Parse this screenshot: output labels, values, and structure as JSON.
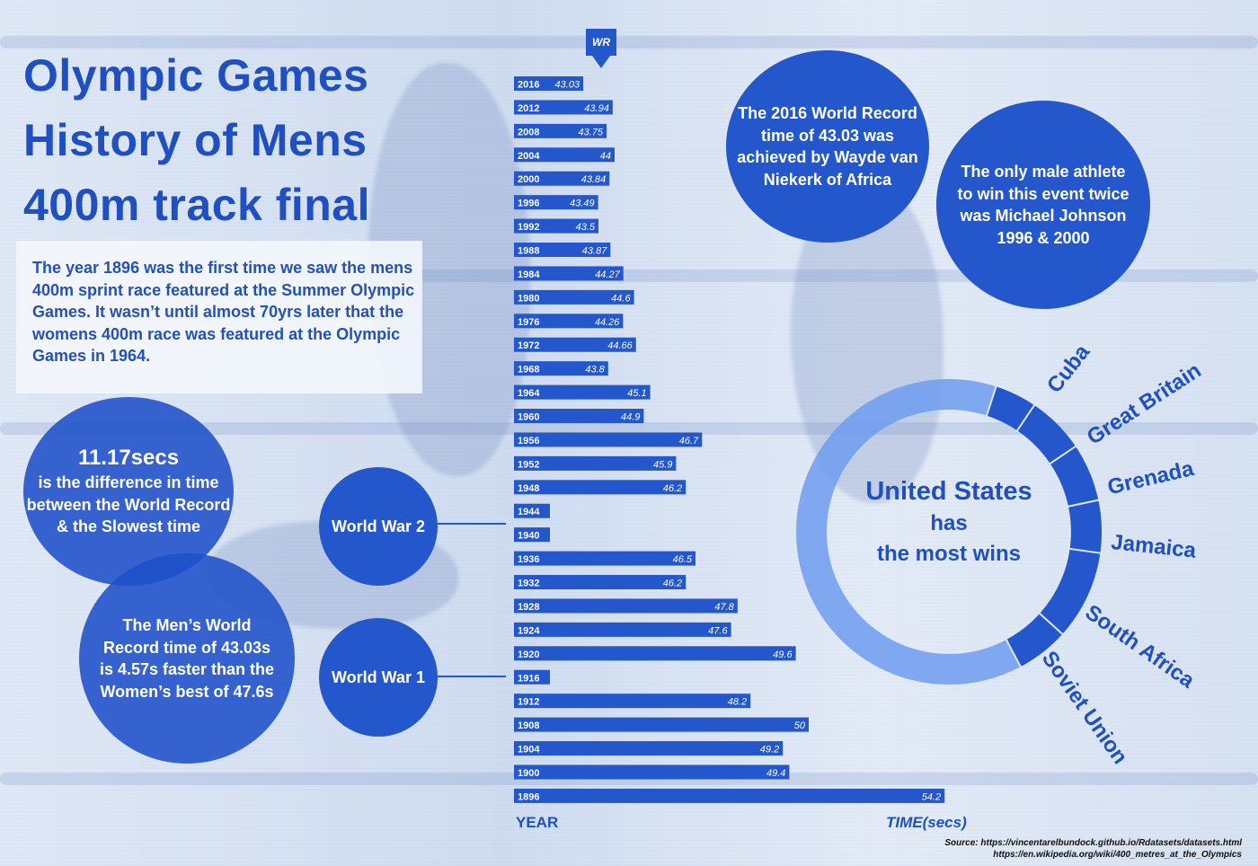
{
  "title_lines": [
    "Olympic Games",
    "History of Mens",
    "400m track final"
  ],
  "intro": "The year 1896 was the first time we saw the mens 400m sprint race featured at the Summer Olympic Games. It wasn’t until almost 70yrs later that the womens 400m race was featured at the Olympic Games in 1964.",
  "facts": {
    "difference_big": "11.17secs",
    "difference_text": "is the difference in time between the World Record & the Slowest time",
    "women": "The Men’s World Record time of 43.03s is 4.57s faster than the Women’s best of 47.6s",
    "wr2016": "The 2016 World Record time of 43.03 was achieved by Wayde van Niekerk of Africa",
    "johnson": "The only male athlete to win this event twice was Michael Johnson 1996 & 2000",
    "ww2": "World War 2",
    "ww1": "World War 1"
  },
  "wr_marker": "WR",
  "axis": {
    "year": "YEAR",
    "time": "TIME(secs)"
  },
  "donut": {
    "center_country": "United States",
    "center_line2": "has",
    "center_line3": "the most wins",
    "countries": [
      "Cuba",
      "Great Britain",
      "Grenada",
      "Jamaica",
      "South Africa",
      "Soviet Union"
    ]
  },
  "source_lines": [
    "Source: https://vincentarelbundock.github.io/Rdatasets/datasets.html",
    "https://en.wikipedia.org/wiki/400_metres_at_the_Olympics"
  ],
  "colors": {
    "bar": "#2457cb",
    "accent": "#1f4fc0",
    "donut_light": "#6f9cf0"
  },
  "chart_data": {
    "type": "bar",
    "orientation": "horizontal",
    "xlabel": "TIME(secs)",
    "ylabel": "YEAR",
    "categories": [
      "2016",
      "2012",
      "2008",
      "2004",
      "2000",
      "1996",
      "1992",
      "1988",
      "1984",
      "1980",
      "1976",
      "1972",
      "1968",
      "1964",
      "1960",
      "1956",
      "1952",
      "1948",
      "1944",
      "1940",
      "1936",
      "1932",
      "1928",
      "1924",
      "1920",
      "1916",
      "1912",
      "1908",
      "1904",
      "1900",
      "1896"
    ],
    "values": [
      43.03,
      43.94,
      43.75,
      44,
      43.84,
      43.49,
      43.5,
      43.87,
      44.27,
      44.6,
      44.26,
      44.66,
      43.8,
      45.1,
      44.9,
      46.7,
      45.9,
      46.2,
      null,
      null,
      46.5,
      46.2,
      47.8,
      47.6,
      49.6,
      null,
      48.2,
      50,
      49.2,
      49.4,
      54.2
    ],
    "value_labels": [
      "43.03",
      "43.94",
      "43.75",
      "44",
      "43.84",
      "43.49",
      "43.5",
      "43.87",
      "44.27",
      "44.6",
      "44.26",
      "44.66",
      "43.8",
      "45.1",
      "44.9",
      "46.7",
      "45.9",
      "46.2",
      "",
      "",
      "46.5",
      "46.2",
      "47.8",
      "47.6",
      "49.6",
      "",
      "48.2",
      "50",
      "49.2",
      "49.4",
      "54.2"
    ]
  }
}
